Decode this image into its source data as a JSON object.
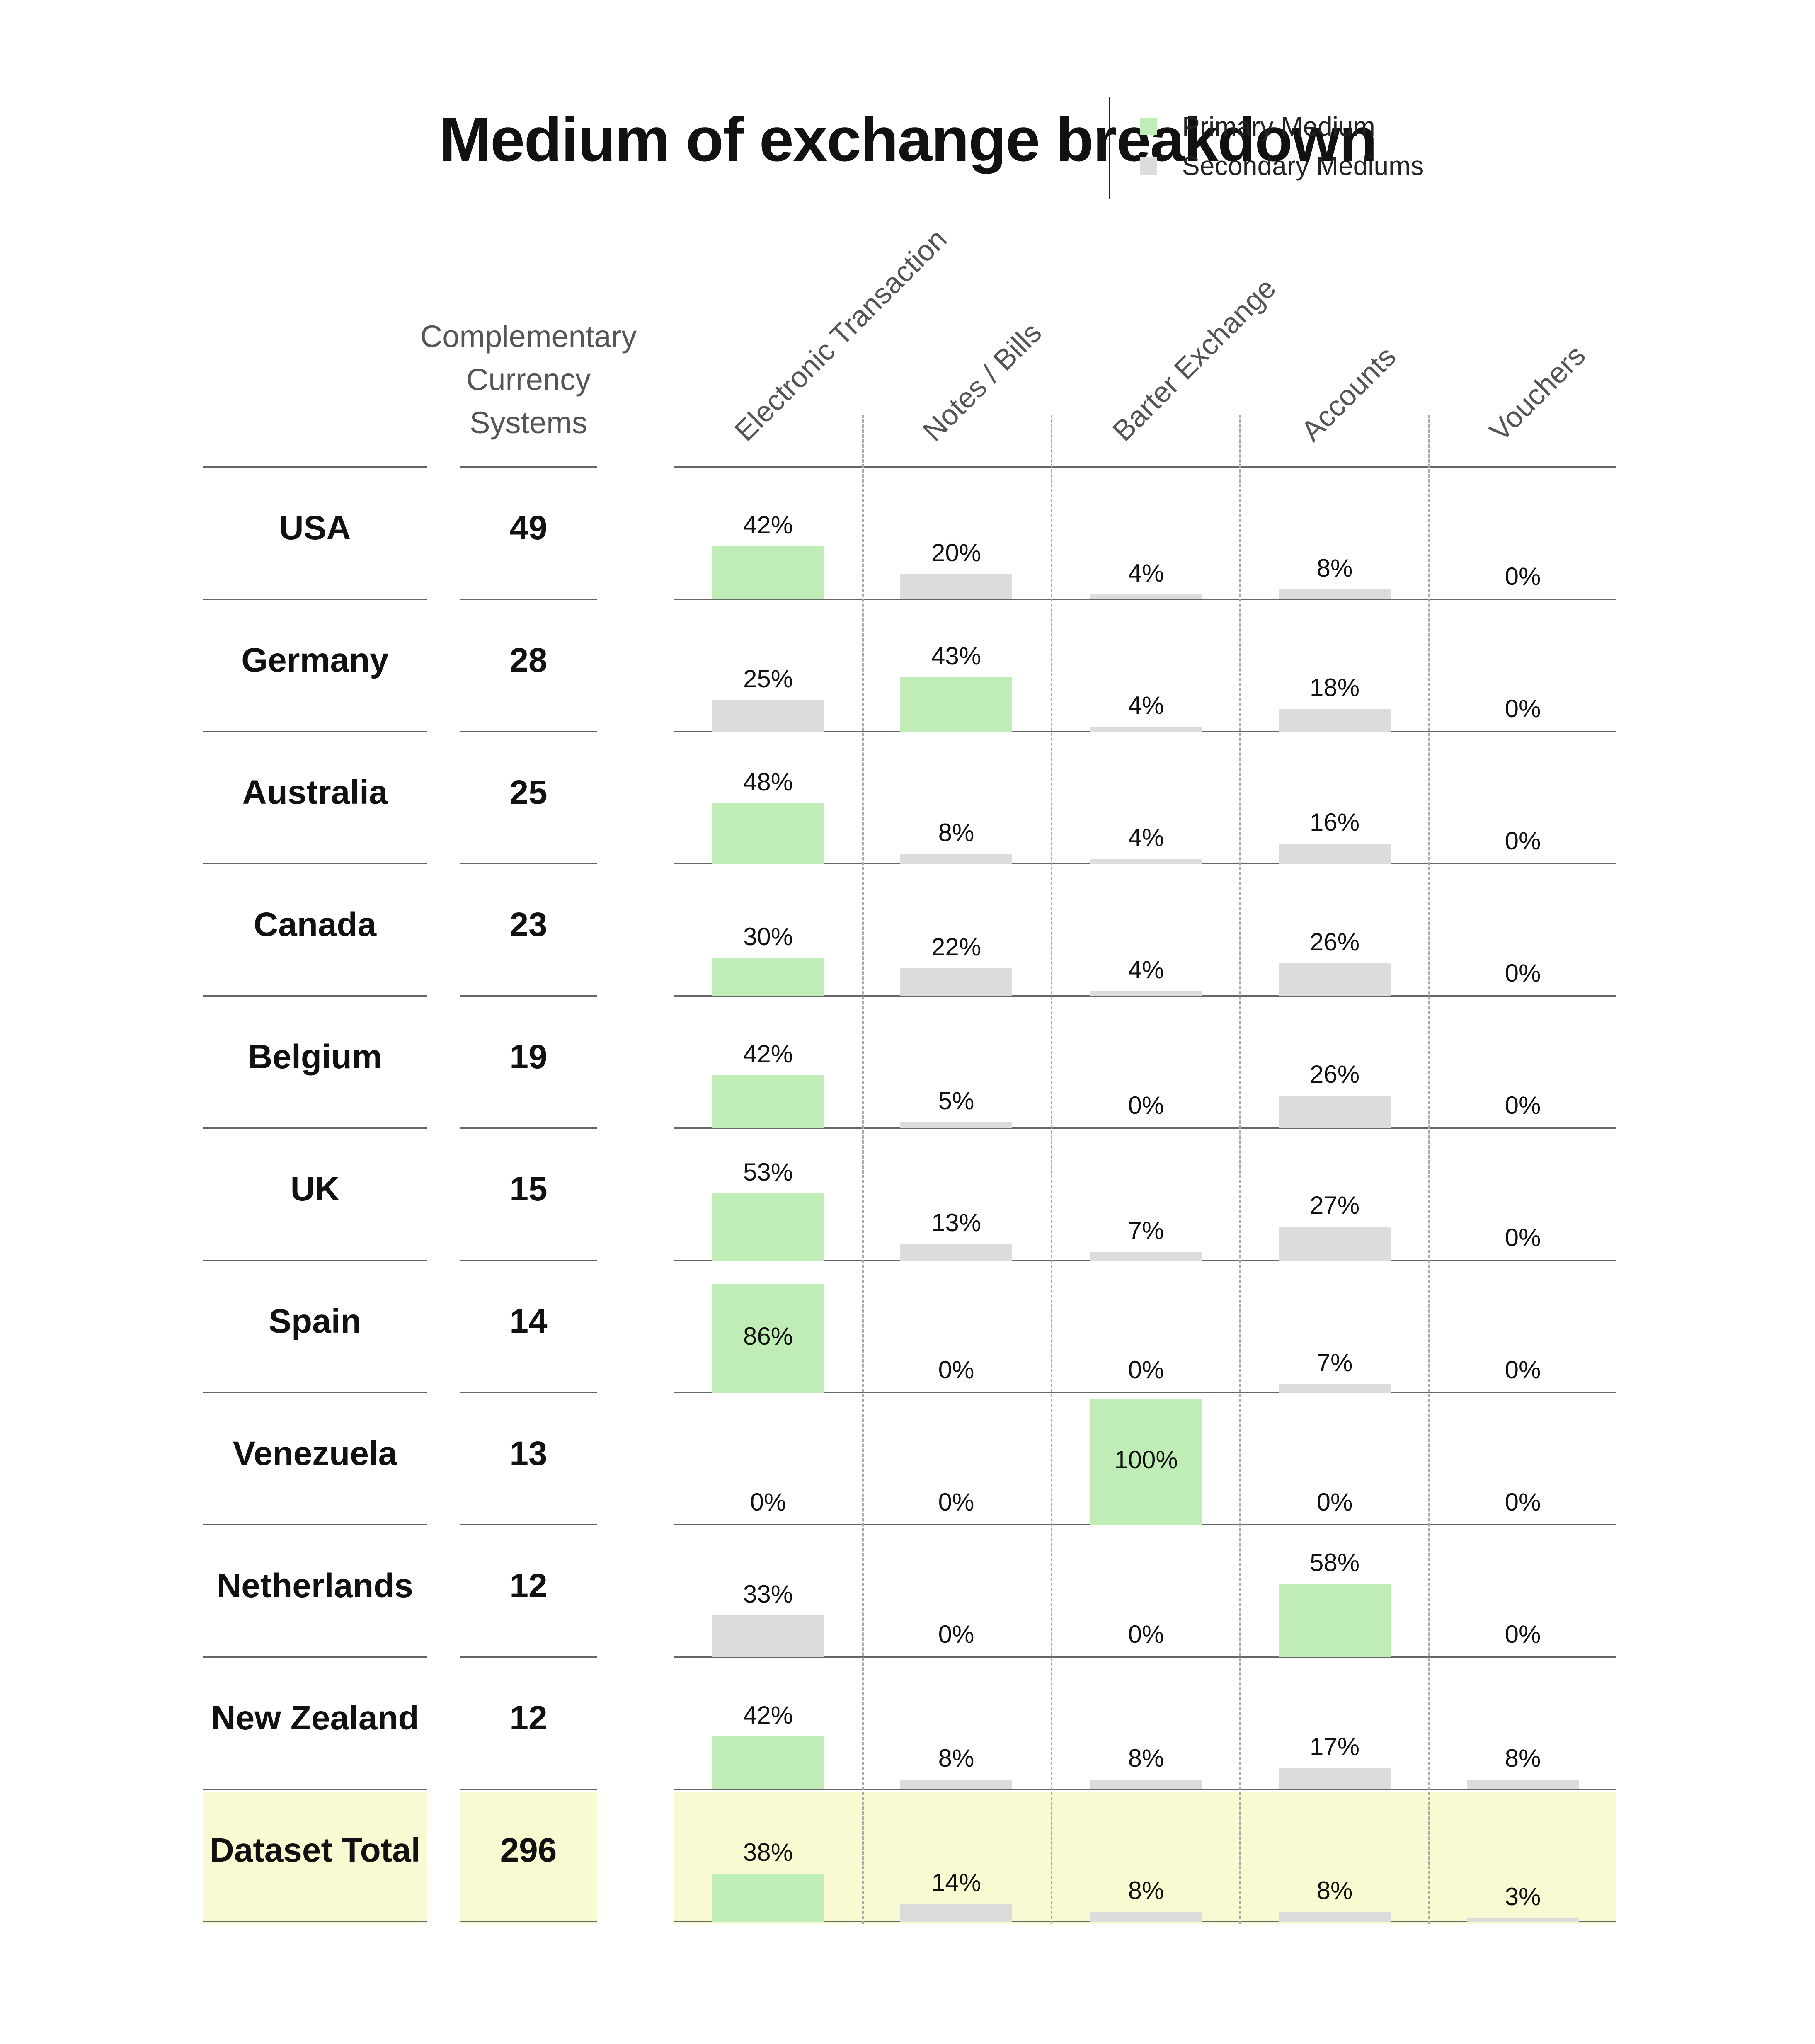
{
  "title": "Medium of exchange breakdown",
  "legend": {
    "primary": "Primary Medium",
    "secondary": "Secondary Mediums"
  },
  "colors": {
    "primary": "#c0edb6",
    "secondary": "#dcdcdc",
    "total_band": "#fafad2"
  },
  "columns": {
    "systems_header": [
      "Complementary",
      "Currency",
      "Systems"
    ]
  },
  "chart_data": {
    "type": "bar",
    "title": "Medium of exchange breakdown",
    "categories": [
      "USA",
      "Germany",
      "Australia",
      "Canada",
      "Belgium",
      "UK",
      "Spain",
      "Venezuela",
      "Netherlands",
      "New Zealand",
      "Dataset Total"
    ],
    "systems": [
      49,
      28,
      25,
      23,
      19,
      15,
      14,
      13,
      12,
      12,
      296
    ],
    "mediums": [
      "Electronic Transaction",
      "Notes / Bills",
      "Barter Exchange",
      "Accounts",
      "Vouchers"
    ],
    "series": [
      {
        "name": "Electronic Transaction",
        "values": [
          42,
          25,
          48,
          30,
          42,
          53,
          86,
          0,
          33,
          42,
          38
        ]
      },
      {
        "name": "Notes / Bills",
        "values": [
          20,
          43,
          8,
          22,
          5,
          13,
          0,
          0,
          0,
          8,
          14
        ]
      },
      {
        "name": "Barter Exchange",
        "values": [
          4,
          4,
          4,
          4,
          0,
          7,
          0,
          100,
          0,
          8,
          8
        ]
      },
      {
        "name": "Accounts",
        "values": [
          8,
          18,
          16,
          26,
          26,
          27,
          7,
          0,
          58,
          17,
          8
        ]
      },
      {
        "name": "Vouchers",
        "values": [
          0,
          0,
          0,
          0,
          0,
          0,
          0,
          0,
          0,
          8,
          3
        ]
      }
    ],
    "labels": [
      [
        "42%",
        "20%",
        "4%",
        "8%",
        "0%"
      ],
      [
        "25%",
        "43%",
        "4%",
        "18%",
        "0%"
      ],
      [
        "48%",
        "8%",
        "4%",
        "16%",
        "0%"
      ],
      [
        "30%",
        "22%",
        "4%",
        "26%",
        "0%"
      ],
      [
        "42%",
        "5%",
        "0%",
        "26%",
        "0%"
      ],
      [
        "53%",
        "13%",
        "7%",
        "27%",
        "0%"
      ],
      [
        "86%",
        "0%",
        "0%",
        "7%",
        "0%"
      ],
      [
        "0%",
        "0%",
        "100%",
        "0%",
        "0%"
      ],
      [
        "33%",
        "0%",
        "0%",
        "58%",
        "0%"
      ],
      [
        "42%",
        "8%",
        "8%",
        "17%",
        "8%"
      ],
      [
        "38%",
        "14%",
        "8%",
        "8%",
        "3%"
      ]
    ],
    "primary": [
      0,
      1,
      0,
      0,
      0,
      0,
      0,
      2,
      3,
      0,
      0
    ],
    "ylim": [
      0,
      100
    ],
    "legend_position": "top-right"
  }
}
